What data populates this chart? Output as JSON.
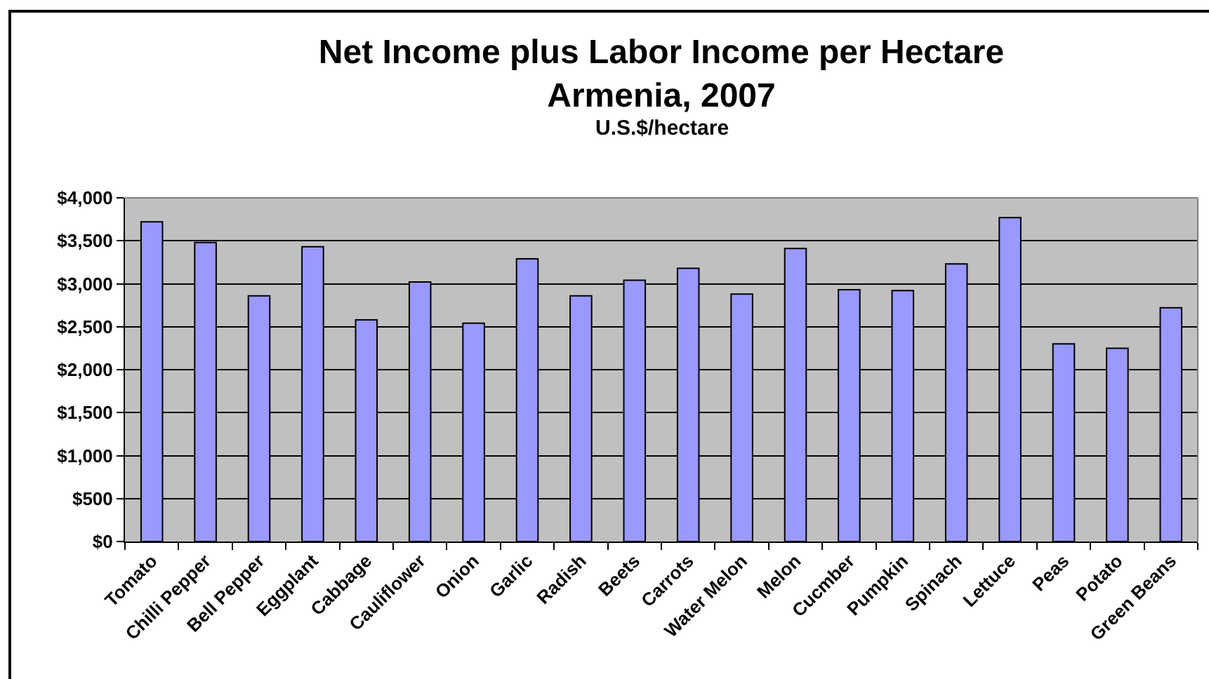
{
  "chart_data": {
    "type": "bar",
    "title": "Net Income plus Labor Income per Hectare\nArmenia, 2007",
    "subtitle": "U.S.$/hectare",
    "categories": [
      "Tomato",
      "Chilli Pepper",
      "Bell Pepper",
      "Eggplant",
      "Cabbage",
      "Cauliflower",
      "Onion",
      "Garlic",
      "Radish",
      "Beets",
      "Carrots",
      "Water Melon",
      "Melon",
      "Cucmber",
      "Pumpkin",
      "Spinach",
      "Lettuce",
      "Peas",
      "Potato",
      "Green Beans"
    ],
    "values": [
      3720,
      3480,
      2860,
      3430,
      2580,
      3020,
      2540,
      3290,
      2860,
      3040,
      3180,
      2880,
      3410,
      2930,
      2920,
      3230,
      3770,
      2300,
      2250,
      2720
    ],
    "color": "#9999ff",
    "ylim": [
      0,
      4000
    ],
    "yticks": [
      {
        "value": 0,
        "label": "$0"
      },
      {
        "value": 500,
        "label": "$500"
      },
      {
        "value": 1000,
        "label": "$1,000"
      },
      {
        "value": 1500,
        "label": "$1,500"
      },
      {
        "value": 2000,
        "label": "$2,000"
      },
      {
        "value": 2500,
        "label": "$2,500"
      },
      {
        "value": 3000,
        "label": "$3,000"
      },
      {
        "value": 3500,
        "label": "$3,500"
      },
      {
        "value": 4000,
        "label": "$4,000"
      }
    ],
    "grid": "y"
  }
}
